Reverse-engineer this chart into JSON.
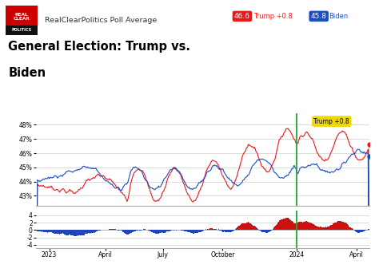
{
  "title_line1": "General Election: Trump vs.",
  "title_line2": "Biden",
  "header_text": "RealClearPolitics Poll Average",
  "trump_label": "Trump +0.8",
  "biden_label": "Biden",
  "trump_value": "46.6",
  "biden_value": "45.8",
  "trump_color": "#e8191a",
  "biden_color": "#1a4fc4",
  "bar_trump_color": "#cc1111",
  "bar_biden_color": "#2244bb",
  "green_line_color": "#22aa22",
  "bg_color": "#ffffff",
  "grid_color": "#cccccc",
  "yticks_main": [
    43,
    44,
    45,
    46,
    47,
    48
  ],
  "ytick_labels_main": [
    "43%",
    "44%",
    "45%",
    "46%",
    "47%",
    "48%"
  ],
  "yticks_diff": [
    -4,
    -2,
    0,
    2,
    4
  ],
  "xtick_labels": [
    "2023",
    "April",
    "July",
    "October",
    "2024",
    "April"
  ],
  "xtick_fracs": [
    0.04,
    0.21,
    0.38,
    0.56,
    0.78,
    0.96
  ],
  "ylim_main": [
    42.3,
    48.8
  ],
  "ylim_diff": [
    -4.8,
    5.2
  ],
  "annotation_text": "Trump +0.8",
  "annotation_bg": "#f0d800",
  "logo_bg": "#cc0000",
  "logo_black": "#111111"
}
